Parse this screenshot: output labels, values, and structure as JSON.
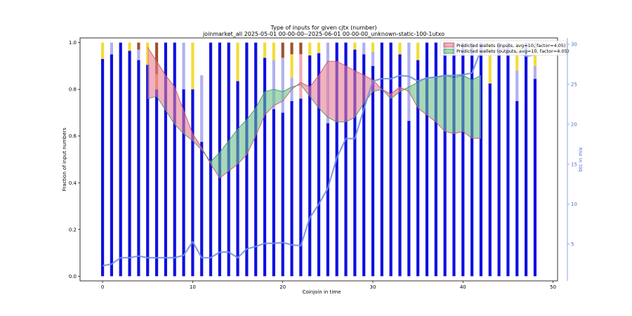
{
  "chart_data": {
    "type": "bar",
    "title": "Type of inputs for given cjtx (number)",
    "subtitle": "joinmarket_all 2025-05-01 00-00-00--2025-06-01 00-00-00_unknown-static-100-1utxo",
    "xlabel": "Coinjoin in time",
    "ylabel": "Fraction of input numbers",
    "y2label": "btc in mix",
    "xlim": [
      -2.5,
      50.5
    ],
    "ylim": [
      -0.02,
      1.02
    ],
    "y2lim": [
      0.4,
      30.8
    ],
    "xticks": [
      "0",
      "10",
      "20",
      "30",
      "40",
      "50"
    ],
    "yticks": [
      "0.0",
      "0.2",
      "0.4",
      "0.6",
      "0.8",
      "1.0"
    ],
    "y2ticks": [
      "5",
      "10",
      "15",
      "20",
      "25",
      "30"
    ],
    "colors": {
      "fresh": "#1010e0",
      "remix": "#b0b0f0",
      "yellow": "#f2dc3a",
      "brown": "#a0522d",
      "orange": "#f5a142",
      "pink": "#f4a6b4",
      "btc_line": "#6f8fe0",
      "pred_inputs_fill": "#e87f96",
      "pred_inputs_edge": "#d0455a",
      "pred_outputs_fill": "#6dbf8a",
      "pred_outputs_edge": "#3c8f55"
    },
    "legend": {
      "placement": "top-right",
      "entries": [
        {
          "name": "Predicted wallets (inputs, avg=10, factor=4.05)",
          "color": "#e87f96"
        },
        {
          "name": "Predicted wallets (outputs, avg=10, factor=4.05)",
          "color": "#6dbf8a"
        }
      ]
    },
    "stacked_bars": [
      [
        {
          "v": 0.93,
          "c": "fresh"
        },
        {
          "v": 0.07,
          "c": "yellow"
        }
      ],
      [
        {
          "v": 0.95,
          "c": "fresh"
        },
        {
          "v": 0.05,
          "c": "remix"
        }
      ],
      [
        {
          "v": 1.0,
          "c": "fresh"
        }
      ],
      [
        {
          "v": 0.965,
          "c": "fresh"
        },
        {
          "v": 0.035,
          "c": "yellow"
        }
      ],
      [
        {
          "v": 0.925,
          "c": "fresh"
        },
        {
          "v": 0.045,
          "c": "remix"
        },
        {
          "v": 0.03,
          "c": "brown"
        }
      ],
      [
        {
          "v": 0.905,
          "c": "fresh"
        },
        {
          "v": 0.095,
          "c": "yellow"
        }
      ],
      [
        {
          "v": 0.8,
          "c": "fresh"
        },
        {
          "v": 0.065,
          "c": "orange"
        },
        {
          "v": 0.135,
          "c": "brown"
        }
      ],
      [
        {
          "v": 1.0,
          "c": "fresh"
        }
      ],
      [
        {
          "v": 1.0,
          "c": "fresh"
        }
      ],
      [
        {
          "v": 0.8,
          "c": "fresh"
        },
        {
          "v": 0.2,
          "c": "remix"
        }
      ],
      [
        {
          "v": 0.8,
          "c": "fresh"
        },
        {
          "v": 0.2,
          "c": "yellow"
        }
      ],
      [
        {
          "v": 0.575,
          "c": "fresh"
        },
        {
          "v": 0.285,
          "c": "remix"
        }
      ],
      [
        {
          "v": 1.0,
          "c": "fresh"
        }
      ],
      [
        {
          "v": 1.0,
          "c": "fresh"
        }
      ],
      [
        {
          "v": 1.0,
          "c": "fresh"
        }
      ],
      [
        {
          "v": 0.835,
          "c": "fresh"
        },
        {
          "v": 0.165,
          "c": "yellow"
        }
      ],
      [
        {
          "v": 1.0,
          "c": "fresh"
        }
      ],
      [
        {
          "v": 1.0,
          "c": "fresh"
        }
      ],
      [
        {
          "v": 0.935,
          "c": "fresh"
        },
        {
          "v": 0.065,
          "c": "yellow"
        }
      ],
      [
        {
          "v": 0.715,
          "c": "fresh"
        },
        {
          "v": 0.21,
          "c": "remix"
        },
        {
          "v": 0.075,
          "c": "yellow"
        }
      ],
      [
        {
          "v": 0.7,
          "c": "fresh"
        },
        {
          "v": 0.235,
          "c": "remix"
        },
        {
          "v": 0.065,
          "c": "brown"
        }
      ],
      [
        {
          "v": 0.75,
          "c": "fresh"
        },
        {
          "v": 0.1,
          "c": "remix"
        },
        {
          "v": 0.1,
          "c": "yellow"
        },
        {
          "v": 0.05,
          "c": "brown"
        }
      ],
      [
        {
          "v": 0.76,
          "c": "fresh"
        },
        {
          "v": 0.19,
          "c": "pink"
        },
        {
          "v": 0.05,
          "c": "brown"
        }
      ],
      [
        {
          "v": 0.945,
          "c": "fresh"
        },
        {
          "v": 0.055,
          "c": "yellow"
        }
      ],
      [
        {
          "v": 0.955,
          "c": "fresh"
        },
        {
          "v": 0.045,
          "c": "yellow"
        }
      ],
      [
        {
          "v": 0.655,
          "c": "fresh"
        },
        {
          "v": 0.345,
          "c": "remix"
        }
      ],
      [
        {
          "v": 1.0,
          "c": "fresh"
        }
      ],
      [
        {
          "v": 1.0,
          "c": "fresh"
        }
      ],
      [
        {
          "v": 0.97,
          "c": "fresh"
        },
        {
          "v": 0.03,
          "c": "yellow"
        }
      ],
      [
        {
          "v": 0.95,
          "c": "fresh"
        },
        {
          "v": 0.05,
          "c": "remix"
        }
      ],
      [
        {
          "v": 0.9,
          "c": "fresh"
        },
        {
          "v": 0.06,
          "c": "remix"
        },
        {
          "v": 0.04,
          "c": "yellow"
        }
      ],
      [
        {
          "v": 1.0,
          "c": "fresh"
        }
      ],
      [
        {
          "v": 1.0,
          "c": "fresh"
        }
      ],
      [
        {
          "v": 0.95,
          "c": "fresh"
        },
        {
          "v": 0.05,
          "c": "yellow"
        }
      ],
      [
        {
          "v": 0.665,
          "c": "fresh"
        },
        {
          "v": 0.335,
          "c": "remix"
        }
      ],
      [
        {
          "v": 0.925,
          "c": "fresh"
        },
        {
          "v": 0.075,
          "c": "yellow"
        }
      ],
      [
        {
          "v": 1.0,
          "c": "fresh"
        }
      ],
      [
        {
          "v": 1.0,
          "c": "fresh"
        }
      ],
      [
        {
          "v": 1.0,
          "c": "fresh"
        }
      ],
      [
        {
          "v": 1.0,
          "c": "fresh"
        }
      ],
      [
        {
          "v": 1.0,
          "c": "fresh"
        }
      ],
      [
        {
          "v": 1.0,
          "c": "fresh"
        }
      ],
      [
        {
          "v": 1.0,
          "c": "fresh"
        }
      ],
      [
        {
          "v": 0.825,
          "c": "fresh"
        },
        {
          "v": 0.175,
          "c": "yellow"
        }
      ],
      [
        {
          "v": 1.0,
          "c": "fresh"
        }
      ],
      [
        {
          "v": 1.0,
          "c": "fresh"
        }
      ],
      [
        {
          "v": 0.75,
          "c": "fresh"
        },
        {
          "v": 0.13,
          "c": "remix"
        },
        {
          "v": 0.12,
          "c": "yellow"
        }
      ],
      [
        {
          "v": 1.0,
          "c": "fresh"
        }
      ],
      [
        {
          "v": 0.845,
          "c": "fresh"
        },
        {
          "v": 0.055,
          "c": "remix"
        },
        {
          "v": 0.07,
          "c": "yellow"
        },
        {
          "v": 0.03,
          "c": "brown"
        }
      ]
    ],
    "predicted_inputs": {
      "x": [
        5,
        6,
        7,
        8,
        9,
        10,
        11,
        12,
        13,
        14,
        15,
        16,
        17,
        18,
        19,
        20,
        21,
        22,
        23,
        24,
        25,
        26,
        27,
        28,
        29,
        30,
        31,
        32,
        33,
        34,
        35,
        36,
        37,
        38,
        39,
        40,
        41,
        42
      ],
      "y": [
        0.98,
        0.92,
        0.86,
        0.81,
        0.71,
        0.61,
        0.55,
        0.48,
        0.42,
        0.45,
        0.48,
        0.52,
        0.6,
        0.69,
        0.73,
        0.75,
        0.8,
        0.83,
        0.81,
        0.86,
        0.92,
        0.92,
        0.9,
        0.88,
        0.86,
        0.84,
        0.8,
        0.78,
        0.81,
        0.79,
        0.72,
        0.69,
        0.66,
        0.62,
        0.61,
        0.62,
        0.59,
        0.59
      ]
    },
    "predicted_outputs": {
      "x": [
        5,
        6,
        7,
        8,
        9,
        10,
        11,
        12,
        13,
        14,
        15,
        16,
        17,
        18,
        19,
        20,
        21,
        22,
        23,
        24,
        25,
        26,
        27,
        28,
        29,
        30,
        31,
        32,
        33,
        34,
        35,
        36,
        37,
        38,
        39,
        40,
        41,
        42
      ],
      "y": [
        0.76,
        0.77,
        0.71,
        0.65,
        0.61,
        0.58,
        0.54,
        0.49,
        0.53,
        0.58,
        0.63,
        0.67,
        0.72,
        0.79,
        0.8,
        0.79,
        0.81,
        0.82,
        0.77,
        0.72,
        0.68,
        0.66,
        0.66,
        0.68,
        0.74,
        0.79,
        0.8,
        0.76,
        0.79,
        0.81,
        0.83,
        0.85,
        0.85,
        0.86,
        0.85,
        0.86,
        0.84,
        0.86
      ]
    },
    "btc_in_mix": {
      "x": [
        0,
        1,
        2,
        3,
        4,
        5,
        6,
        7,
        8,
        9,
        10,
        11,
        12,
        13,
        14,
        15,
        16,
        17,
        18,
        19,
        20,
        21,
        22,
        23,
        24,
        25,
        26,
        27,
        28,
        29,
        30,
        31,
        32,
        33,
        34,
        35,
        36,
        37,
        38,
        39,
        40,
        41,
        42,
        43,
        44,
        45,
        46,
        47,
        48
      ],
      "y": [
        2.3,
        2.5,
        3.3,
        3.3,
        3.5,
        3.3,
        3.3,
        3.3,
        3.3,
        3.6,
        5.3,
        3.3,
        3.3,
        4.0,
        4.0,
        3.3,
        4.4,
        4.7,
        5.1,
        5.1,
        5.2,
        4.9,
        4.8,
        8.3,
        10.0,
        12.0,
        15.8,
        18.2,
        18.2,
        21.9,
        25.4,
        25.7,
        25.7,
        26.1,
        26.0,
        25.4,
        25.8,
        25.9,
        26.1,
        26.1,
        26.2,
        26.4,
        29.3,
        29.1,
        29.3,
        29.6,
        29.0,
        28.5,
        28.7
      ]
    }
  }
}
